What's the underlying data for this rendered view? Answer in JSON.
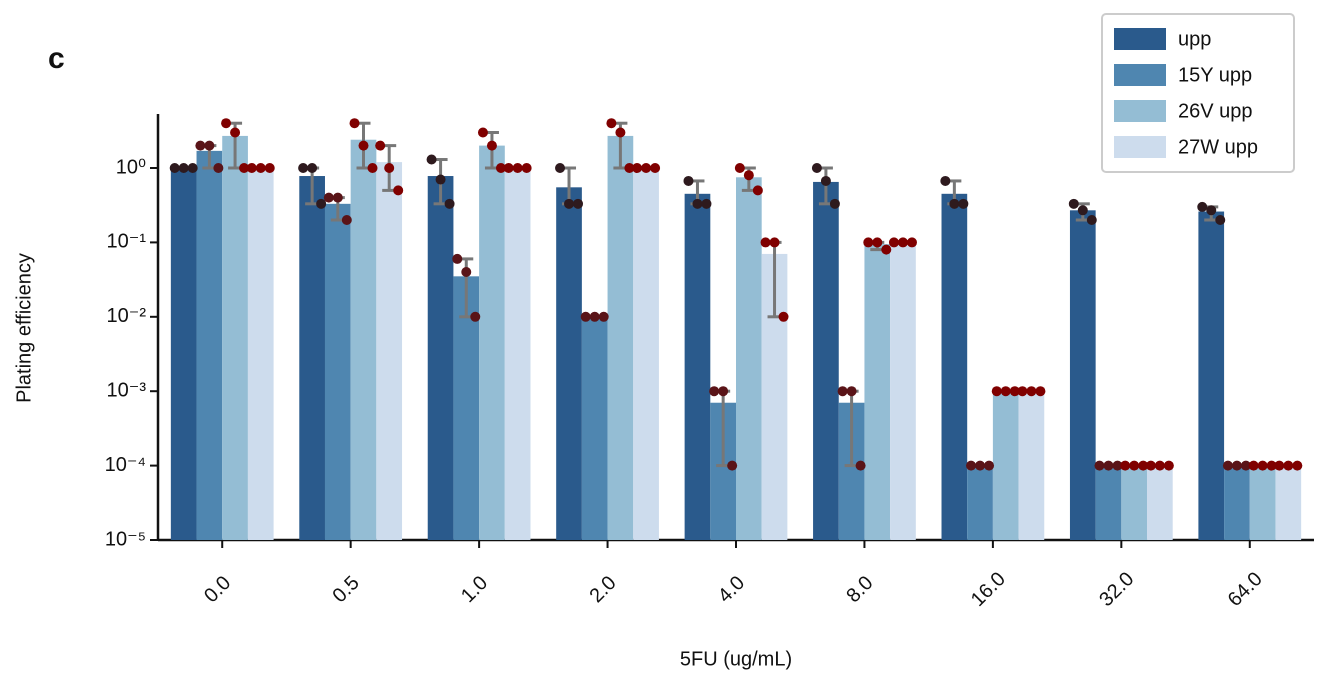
{
  "chart_data": {
    "type": "bar",
    "panel_label": "c",
    "xlabel": "5FU (ug/mL)",
    "ylabel": "Plating efficiency",
    "log_y": true,
    "legend": "upper right",
    "categories": [
      "0.0",
      "0.5",
      "1.0",
      "2.0",
      "4.0",
      "8.0",
      "16.0",
      "32.0",
      "64.0"
    ],
    "series": [
      {
        "name": "upp",
        "color": "#2a5a8c",
        "point_color": "#2e1a1e",
        "values": [
          1,
          0.78,
          0.78,
          0.55,
          0.45,
          0.65,
          0.45,
          0.27,
          0.26
        ],
        "points": [
          [
            1,
            1,
            1
          ],
          [
            1,
            1,
            0.33
          ],
          [
            1.3,
            0.7,
            0.33
          ],
          [
            1,
            0.33,
            0.33
          ],
          [
            0.67,
            0.33,
            0.33
          ],
          [
            1,
            0.67,
            0.33
          ],
          [
            0.67,
            0.33,
            0.33
          ],
          [
            0.33,
            0.27,
            0.2
          ],
          [
            0.3,
            0.27,
            0.2
          ]
        ]
      },
      {
        "name": "15Y upp",
        "color": "#4f86b0",
        "point_color": "#5a1418",
        "values": [
          1.7,
          0.33,
          0.035,
          0.01,
          0.0007,
          0.0007,
          0.0001,
          0.0001,
          0.0001
        ],
        "points": [
          [
            2,
            2,
            1
          ],
          [
            0.4,
            0.4,
            0.2
          ],
          [
            0.06,
            0.04,
            0.01
          ],
          [
            0.01,
            0.01,
            0.01
          ],
          [
            0.001,
            0.001,
            0.0001
          ],
          [
            0.001,
            0.001,
            0.0001
          ],
          [
            0.0001,
            0.0001,
            0.0001
          ],
          [
            0.0001,
            0.0001,
            0.0001
          ],
          [
            0.0001,
            0.0001,
            0.0001
          ]
        ]
      },
      {
        "name": "26V upp",
        "color": "#94bdd4",
        "point_color": "#800000",
        "values": [
          2.7,
          2.4,
          2.0,
          2.7,
          0.75,
          0.095,
          0.001,
          0.0001,
          0.0001
        ],
        "points": [
          [
            4,
            3,
            1
          ],
          [
            4,
            2,
            1
          ],
          [
            3,
            2,
            1
          ],
          [
            4,
            3,
            1
          ],
          [
            1,
            0.8,
            0.5
          ],
          [
            0.1,
            0.1,
            0.08
          ],
          [
            0.001,
            0.001,
            0.001
          ],
          [
            0.0001,
            0.0001,
            0.0001
          ],
          [
            0.0001,
            0.0001,
            0.0001
          ]
        ]
      },
      {
        "name": "27W upp",
        "color": "#cddced",
        "point_color": "#800000",
        "values": [
          1,
          1.2,
          1,
          1,
          0.07,
          0.1,
          0.001,
          0.0001,
          0.0001
        ],
        "points": [
          [
            1,
            1,
            1
          ],
          [
            2,
            1,
            0.5
          ],
          [
            1,
            1,
            1
          ],
          [
            1,
            1,
            1
          ],
          [
            0.1,
            0.1,
            0.01
          ],
          [
            0.1,
            0.1,
            0.1
          ],
          [
            0.001,
            0.001,
            0.001
          ],
          [
            0.0001,
            0.0001,
            0.0001
          ],
          [
            0.0001,
            0.0001,
            0.0001
          ]
        ]
      }
    ],
    "ylim": [
      1e-05,
      5
    ],
    "yticks": [
      {
        "value": 1e-05,
        "label": "10⁻⁵"
      },
      {
        "value": 0.0001,
        "label": "10⁻⁴"
      },
      {
        "value": 0.001,
        "label": "10⁻³"
      },
      {
        "value": 0.01,
        "label": "10⁻²"
      },
      {
        "value": 0.1,
        "label": "10⁻¹"
      },
      {
        "value": 1,
        "label": "10⁰"
      }
    ]
  }
}
